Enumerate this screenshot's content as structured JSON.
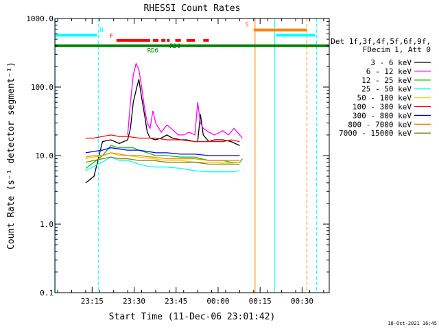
{
  "chart_data": {
    "type": "line",
    "title": "RHESSI Count Rates",
    "xlabel": "Start Time (11-Dec-06 23:01:42)",
    "ylabel": "Count Rate (s⁻¹ detector segment⁻¹)",
    "yscale": "log",
    "ylim": [
      0.1,
      1000.0
    ],
    "xlim_minutes_after_start": [
      0,
      98
    ],
    "x_tick_labels": [
      "23:15",
      "23:30",
      "23:45",
      "00:00",
      "00:15",
      "00:30"
    ],
    "x_tick_minutes": [
      13.3,
      28.3,
      43.3,
      58.3,
      73.3,
      88.3
    ],
    "y_tick_labels": [
      "0.1",
      "1.0",
      "10.0",
      "100.0",
      "1000.0"
    ],
    "y_tick_values": [
      0.1,
      1,
      10,
      100,
      1000
    ],
    "legend_header": [
      "Det 1f,3f,4f,5f,6f,9f,",
      "FDecim 1, Att 0"
    ],
    "series": [
      {
        "name": "3 - 6 keV",
        "color": "#000000",
        "points": [
          [
            11,
            4.0
          ],
          [
            14,
            5.0
          ],
          [
            17,
            16
          ],
          [
            20,
            17
          ],
          [
            23,
            15
          ],
          [
            26,
            17
          ],
          [
            27,
            25
          ],
          [
            28,
            60
          ],
          [
            29,
            90
          ],
          [
            30,
            130
          ],
          [
            31,
            70
          ],
          [
            32,
            40
          ],
          [
            33,
            22
          ],
          [
            34,
            18
          ],
          [
            36,
            17
          ],
          [
            38,
            18
          ],
          [
            40,
            20
          ],
          [
            42,
            18
          ],
          [
            45,
            17
          ],
          [
            47,
            17
          ],
          [
            50,
            16
          ],
          [
            51,
            16
          ],
          [
            52,
            40
          ],
          [
            53,
            20
          ],
          [
            55,
            16
          ],
          [
            57,
            17
          ],
          [
            60,
            17
          ],
          [
            63,
            16
          ],
          [
            66,
            14
          ]
        ]
      },
      {
        "name": "6 - 12 keV",
        "color": "#ff00ff",
        "points": [
          [
            26,
            20
          ],
          [
            27,
            60
          ],
          [
            28,
            150
          ],
          [
            29,
            220
          ],
          [
            30,
            180
          ],
          [
            31,
            100
          ],
          [
            32,
            50
          ],
          [
            33,
            30
          ],
          [
            34,
            25
          ],
          [
            35,
            45
          ],
          [
            36,
            30
          ],
          [
            38,
            22
          ],
          [
            40,
            28
          ],
          [
            42,
            24
          ],
          [
            44,
            20
          ],
          [
            46,
            20
          ],
          [
            48,
            22
          ],
          [
            50,
            20
          ],
          [
            51,
            60
          ],
          [
            52,
            30
          ],
          [
            53,
            25
          ],
          [
            55,
            22
          ],
          [
            57,
            20
          ],
          [
            60,
            23
          ],
          [
            62,
            20
          ],
          [
            64,
            25
          ],
          [
            66,
            20
          ],
          [
            67,
            18
          ]
        ]
      },
      {
        "name": "12 - 25 keV",
        "color": "#00c800",
        "points": [
          [
            11,
            6.5
          ],
          [
            14,
            8
          ],
          [
            17,
            10
          ],
          [
            20,
            14
          ],
          [
            23,
            13
          ],
          [
            26,
            13
          ],
          [
            28,
            13
          ],
          [
            30,
            12
          ],
          [
            33,
            11
          ],
          [
            36,
            10
          ],
          [
            40,
            10
          ],
          [
            45,
            9.5
          ],
          [
            50,
            9.5
          ],
          [
            55,
            8.5
          ],
          [
            60,
            8.5
          ],
          [
            63,
            8
          ],
          [
            66,
            8
          ],
          [
            67,
            9
          ]
        ]
      },
      {
        "name": "25 - 50 keV",
        "color": "#00ffff",
        "points": [
          [
            11,
            6
          ],
          [
            14,
            7
          ],
          [
            17,
            8
          ],
          [
            20,
            9.5
          ],
          [
            23,
            8.5
          ],
          [
            26,
            8.5
          ],
          [
            28,
            8
          ],
          [
            30,
            7.5
          ],
          [
            33,
            7
          ],
          [
            36,
            6.8
          ],
          [
            40,
            6.8
          ],
          [
            45,
            6.5
          ],
          [
            50,
            6
          ],
          [
            55,
            5.8
          ],
          [
            60,
            5.8
          ],
          [
            63,
            5.8
          ],
          [
            66,
            6
          ]
        ]
      },
      {
        "name": "50 - 100 keV",
        "color": "#ffc800",
        "points": [
          [
            11,
            9
          ],
          [
            14,
            9.5
          ],
          [
            17,
            10
          ],
          [
            20,
            11
          ],
          [
            23,
            10
          ],
          [
            26,
            10
          ],
          [
            30,
            9.5
          ],
          [
            35,
            9
          ],
          [
            40,
            8.5
          ],
          [
            45,
            8.5
          ],
          [
            50,
            8
          ],
          [
            55,
            8
          ],
          [
            60,
            7.8
          ],
          [
            63,
            7.8
          ],
          [
            66,
            8
          ]
        ]
      },
      {
        "name": "100 - 300 keV",
        "color": "#ff0000",
        "points": [
          [
            11,
            18
          ],
          [
            14,
            18
          ],
          [
            17,
            19
          ],
          [
            20,
            20
          ],
          [
            23,
            19
          ],
          [
            26,
            19
          ],
          [
            30,
            18
          ],
          [
            33,
            18
          ],
          [
            36,
            18
          ],
          [
            40,
            17
          ],
          [
            45,
            17
          ],
          [
            50,
            16
          ],
          [
            55,
            16
          ],
          [
            60,
            16
          ],
          [
            63,
            17
          ],
          [
            66,
            16
          ]
        ]
      },
      {
        "name": "300 - 800 keV",
        "color": "#0000ff",
        "points": [
          [
            11,
            11
          ],
          [
            14,
            11.5
          ],
          [
            17,
            12
          ],
          [
            20,
            13
          ],
          [
            23,
            12.5
          ],
          [
            26,
            12
          ],
          [
            30,
            12
          ],
          [
            33,
            11.5
          ],
          [
            36,
            11
          ],
          [
            40,
            11
          ],
          [
            45,
            10.5
          ],
          [
            50,
            10.5
          ],
          [
            55,
            10
          ],
          [
            60,
            10
          ],
          [
            63,
            10
          ],
          [
            66,
            10
          ]
        ]
      },
      {
        "name": "800 - 7000 keV",
        "color": "#ff8000",
        "points": [
          [
            11,
            9.5
          ],
          [
            14,
            10
          ],
          [
            17,
            10
          ],
          [
            20,
            11
          ],
          [
            23,
            10.5
          ],
          [
            26,
            10
          ],
          [
            30,
            10
          ],
          [
            35,
            9.5
          ],
          [
            40,
            9
          ],
          [
            45,
            9
          ],
          [
            50,
            9
          ],
          [
            55,
            8.5
          ],
          [
            60,
            8.5
          ],
          [
            63,
            8.5
          ],
          [
            66,
            8.5
          ]
        ]
      },
      {
        "name": "7000 - 15000 keV",
        "color": "#808000",
        "points": [
          [
            11,
            8
          ],
          [
            14,
            8.5
          ],
          [
            17,
            9
          ],
          [
            20,
            9.5
          ],
          [
            23,
            9
          ],
          [
            26,
            9
          ],
          [
            30,
            8.5
          ],
          [
            35,
            8.5
          ],
          [
            40,
            8
          ],
          [
            45,
            8
          ],
          [
            50,
            8
          ],
          [
            55,
            7.5
          ],
          [
            60,
            7.5
          ],
          [
            63,
            7.5
          ],
          [
            66,
            7.5
          ]
        ]
      }
    ],
    "state_bars": [
      {
        "label": "N",
        "color": "#00ffff",
        "value": 570,
        "x_ranges": [
          [
            0,
            15
          ],
          [
            79,
            93
          ]
        ]
      },
      {
        "label": "F",
        "color": "#ff0000",
        "value": 480,
        "x_ranges": [
          [
            22,
            34
          ],
          [
            35,
            37
          ],
          [
            38,
            39.5
          ],
          [
            40,
            41
          ],
          [
            43,
            45
          ],
          [
            47,
            50
          ],
          [
            53,
            55
          ]
        ]
      },
      {
        "label": "RD0",
        "color": "#008000",
        "value": 400,
        "x_ranges": [
          [
            0,
            98
          ]
        ]
      },
      {
        "label": "RD6",
        "color": "#008000",
        "value": 400,
        "x_ranges": []
      },
      {
        "label": "S",
        "color": "#ff8000",
        "value": 680,
        "x_ranges": [
          [
            71,
            90
          ]
        ]
      }
    ],
    "vertical_lines": [
      {
        "color": "#00ffff",
        "dashed": false,
        "x": 0.1
      },
      {
        "color": "#00ffff",
        "dashed": true,
        "x": 15.5
      },
      {
        "color": "#00ffff",
        "dashed": false,
        "x": 78.5
      },
      {
        "color": "#00ffff",
        "dashed": true,
        "x": 93.5
      },
      {
        "color": "#ff8000",
        "dashed": false,
        "x": 71.5
      },
      {
        "color": "#ff8000",
        "dashed": true,
        "x": 90
      }
    ],
    "timestamp": "18-Oct-2021 16:45"
  }
}
